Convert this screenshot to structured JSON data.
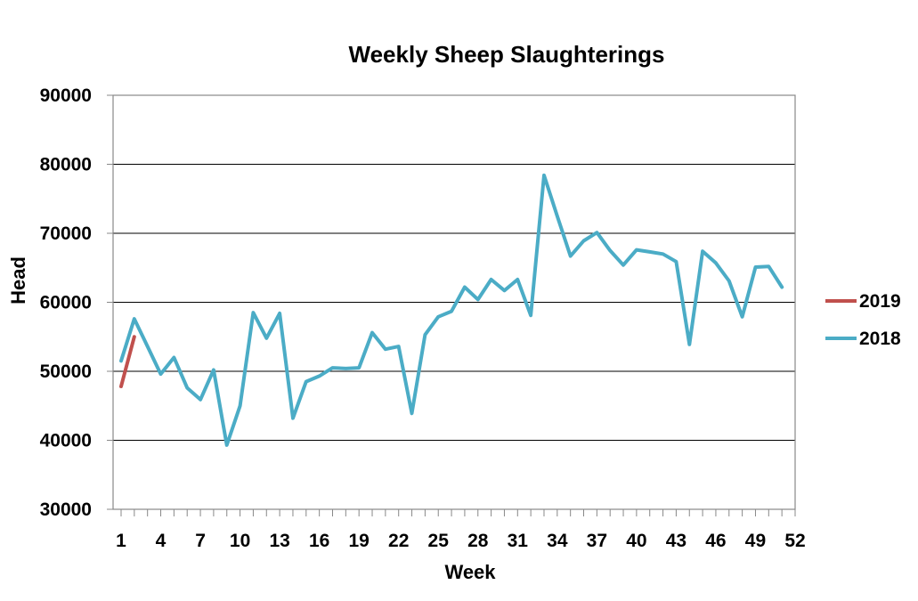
{
  "chart_data": {
    "type": "line",
    "title": "Weekly Sheep Slaughterings",
    "xlabel": "Week",
    "ylabel": "Head",
    "ylim": [
      30000,
      90000
    ],
    "xlim": [
      1,
      52
    ],
    "y_ticks": [
      30000,
      40000,
      50000,
      60000,
      70000,
      80000,
      90000
    ],
    "y_tick_labels": [
      "30000",
      "40000",
      "50000",
      "60000",
      "70000",
      "80000",
      "90000"
    ],
    "x_tick_labels": [
      "1",
      "4",
      "7",
      "10",
      "13",
      "16",
      "19",
      "22",
      "25",
      "28",
      "31",
      "34",
      "37",
      "40",
      "43",
      "46",
      "49",
      "52"
    ],
    "grid": "horizontal",
    "legend_position": "right",
    "series": [
      {
        "name": "2019",
        "color": "#c0504d",
        "x": [
          1,
          2
        ],
        "values": [
          47800,
          55000
        ]
      },
      {
        "name": "2018",
        "color": "#4bacc6",
        "x": [
          1,
          2,
          3,
          4,
          5,
          6,
          7,
          8,
          9,
          10,
          11,
          12,
          13,
          14,
          15,
          16,
          17,
          18,
          19,
          20,
          21,
          22,
          23,
          24,
          25,
          26,
          27,
          28,
          29,
          30,
          31,
          32,
          33,
          34,
          35,
          36,
          37,
          38,
          39,
          40,
          41,
          42,
          43,
          44,
          45,
          46,
          47,
          48,
          49,
          50,
          51
        ],
        "values": [
          51500,
          57600,
          53600,
          49600,
          52000,
          47600,
          45900,
          50200,
          39300,
          45000,
          58500,
          54800,
          58400,
          43200,
          48500,
          49300,
          50500,
          50400,
          50500,
          55600,
          53200,
          53600,
          43900,
          55300,
          57900,
          58700,
          62200,
          60400,
          63300,
          61700,
          63300,
          58100,
          78400,
          72500,
          66700,
          68900,
          70100,
          67500,
          65400,
          67600,
          67300,
          67000,
          65900,
          53900,
          67400,
          65700,
          63100,
          57900,
          65100,
          65200,
          62200
        ]
      }
    ]
  }
}
